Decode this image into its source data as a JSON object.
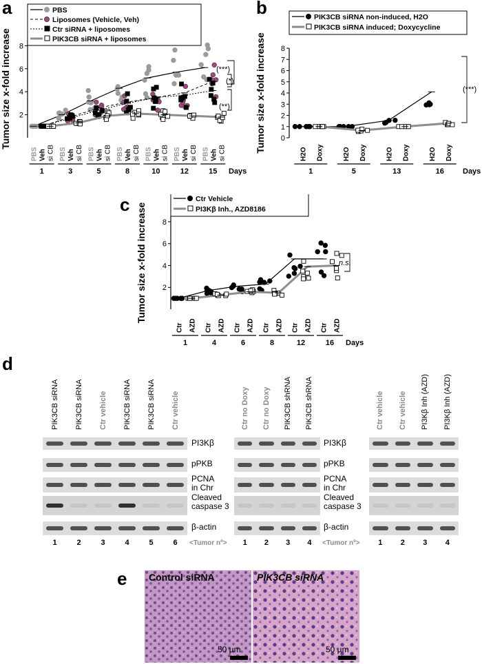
{
  "panels": {
    "a": "a",
    "b": "b",
    "c": "c",
    "d": "d",
    "e": "e"
  },
  "chart_data": [
    {
      "id": "a",
      "type": "scatter",
      "ylabel": "Tumor size x-fold increase",
      "xunit": "Days",
      "yticks": [
        "2",
        "4",
        "6",
        "8"
      ],
      "ylim": [
        0,
        8.5
      ],
      "days": [
        "1",
        "3",
        "5",
        "8",
        "10",
        "12",
        "15"
      ],
      "group_labels": [
        "PBS",
        "Veh",
        "si CB"
      ],
      "legend": [
        "PBS",
        "Liposomes (Vehicle, Veh)",
        "Ctr siRNA + liposomes",
        "PIK3CB siRNA + liposomes"
      ],
      "series": [
        {
          "name": "PBS",
          "values": [
            1.0,
            2.0,
            3.2,
            4.3,
            5.2,
            5.7,
            6.1
          ]
        },
        {
          "name": "Liposomes (Vehicle, Veh)",
          "values": [
            1.0,
            1.8,
            2.6,
            3.1,
            3.5,
            3.9,
            4.9
          ]
        },
        {
          "name": "Ctr siRNA + liposomes",
          "values": [
            1.0,
            1.7,
            2.4,
            3.0,
            3.5,
            3.7,
            4.1
          ]
        },
        {
          "name": "PIK3CB siRNA + liposomes",
          "values": [
            1.0,
            1.3,
            1.9,
            2.1,
            2.0,
            1.9,
            1.8
          ]
        }
      ],
      "significance": [
        "(***)",
        "(*)",
        "(**)"
      ]
    },
    {
      "id": "b",
      "type": "scatter",
      "ylabel": "Tumor size x-fold increase",
      "xunit": "Days",
      "yticks": [
        "0",
        "1",
        "2",
        "3",
        "4",
        "5",
        "6",
        "7",
        "8"
      ],
      "ylim": [
        0,
        8
      ],
      "days": [
        "1",
        "5",
        "13",
        "16"
      ],
      "group_labels": [
        "H2O",
        "Doxy"
      ],
      "legend": [
        "PIK3CB siRNA non-induced, H2O",
        "PIK3CB siRNA induced; Doxycycline"
      ],
      "series": [
        {
          "name": "PIK3CB siRNA non-induced, H2O",
          "values": [
            1.0,
            1.0,
            1.55,
            4.1
          ]
        },
        {
          "name": "PIK3CB siRNA induced; Doxycycline",
          "values": [
            1.0,
            0.65,
            1.0,
            1.3
          ]
        }
      ],
      "significance": [
        "(***)"
      ]
    },
    {
      "id": "c",
      "type": "scatter",
      "ylabel": "Tumor size x-fold increase",
      "xunit": "Days",
      "yticks": [
        "2",
        "4",
        "6",
        "8"
      ],
      "ylim": [
        0,
        8.5
      ],
      "days": [
        "1",
        "4",
        "6",
        "8",
        "12",
        "16"
      ],
      "group_labels": [
        "Ctr",
        "AZD"
      ],
      "legend": [
        "Ctr Vehicle",
        "PI3Kβ Inh., AZD8186"
      ],
      "series": [
        {
          "name": "Ctr Vehicle",
          "values": [
            1.0,
            1.7,
            2.1,
            2.3,
            4.6,
            4.6
          ]
        },
        {
          "name": "PI3Kβ Inh., AZD8186",
          "values": [
            1.0,
            1.3,
            1.6,
            1.5,
            3.9,
            4.0
          ]
        }
      ],
      "significance": [
        "n.s."
      ]
    }
  ],
  "blots": {
    "left_lanes": [
      "PIK3CB siRNA",
      "PIK3CB siRNA",
      "Ctr vehicle",
      "PIK3CB siRNA",
      "PIK3CB siRNA",
      "Ctr vehicle"
    ],
    "left_nums": [
      "1",
      "2",
      "3",
      "4",
      "5",
      "6"
    ],
    "mid_lanes": [
      "Ctr no Doxy",
      "Ctr no Doxy",
      "PIK3CB shRNA",
      "PIK3CB shRNA"
    ],
    "mid_nums": [
      "1",
      "2",
      "3",
      "4"
    ],
    "right_lanes": [
      "Ctr vehicle",
      "Ctr vehicle",
      "PI3Kβ  Inh (AZD)",
      "PI3Kβ  Inh (AZD)"
    ],
    "right_nums": [
      "1",
      "2",
      "3",
      "4"
    ],
    "rows": [
      "PI3Kβ",
      "pPKB",
      "PCNA\nin Chr",
      "Cleaved\ncaspase 3",
      "β-actin"
    ],
    "tumor_label": "<Tumor nº>"
  },
  "histology": {
    "left_title": "Control siRNA",
    "right_title": "PIK3CB siRNA",
    "scale": "50 µm"
  }
}
